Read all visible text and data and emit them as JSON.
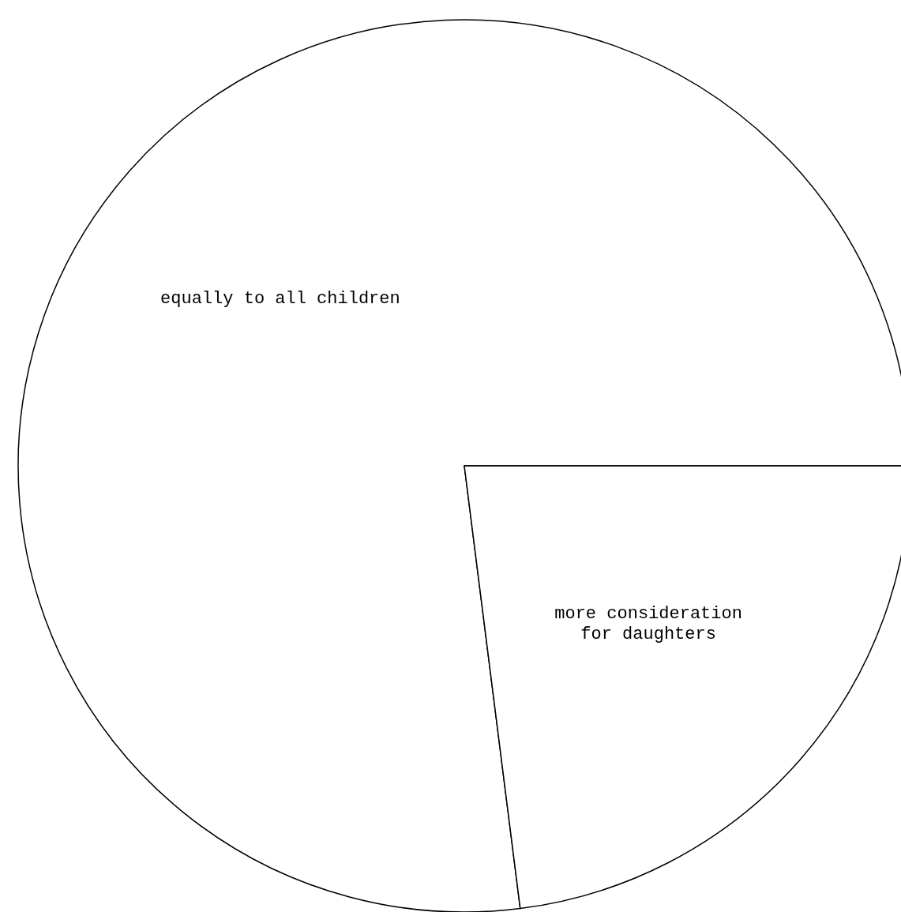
{
  "chart_data": {
    "type": "pie",
    "categories": [
      "equally to all children",
      "more consideration for daughters"
    ],
    "values": [
      77,
      23
    ],
    "colors": [
      "#ffffff",
      "#ffffff"
    ]
  }
}
